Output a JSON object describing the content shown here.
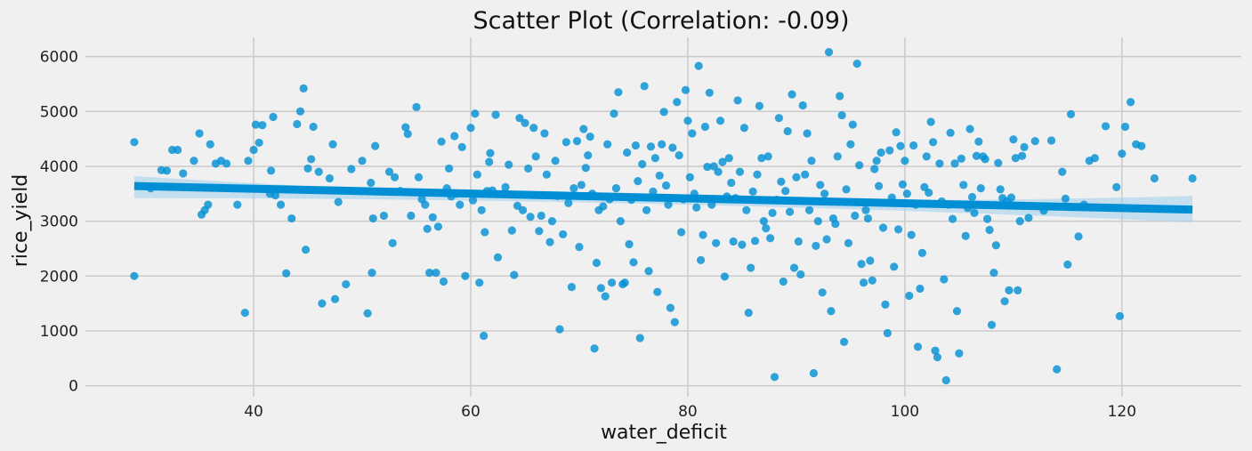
{
  "chart_data": {
    "type": "scatter",
    "title": "Scatter Plot (Correlation: -0.09)",
    "xlabel": "water_deficit",
    "ylabel": "rice_yield",
    "xlim": [
      24.5,
      131
    ],
    "ylim": [
      -200,
      6350
    ],
    "xticks": [
      40,
      60,
      80,
      100,
      120
    ],
    "yticks": [
      0,
      1000,
      2000,
      3000,
      4000,
      5000,
      6000
    ],
    "grid": true,
    "colors": {
      "points": "#008fd5",
      "line": "#008fd5",
      "band": "#9fd0ee",
      "background": "#f0f0f0",
      "grid": "#cbcbcb"
    },
    "regression": {
      "x_start": 29,
      "y_start": 3640,
      "x_end": 126.5,
      "y_end": 3210,
      "ci_start": [
        3420,
        3820
      ],
      "ci_mid": [
        3310,
        3420
      ],
      "ci_end": [
        2980,
        3460
      ]
    },
    "points": [
      [
        29,
        4440
      ],
      [
        29,
        2000
      ],
      [
        30.5,
        3600
      ],
      [
        31.5,
        3930
      ],
      [
        32,
        3920
      ],
      [
        32.5,
        4300
      ],
      [
        33,
        4300
      ],
      [
        33.5,
        3870
      ],
      [
        34.5,
        4100
      ],
      [
        35,
        4600
      ],
      [
        35.2,
        3120
      ],
      [
        35.5,
        3200
      ],
      [
        35.8,
        3300
      ],
      [
        36,
        4400
      ],
      [
        36.5,
        4050
      ],
      [
        37,
        4100
      ],
      [
        37.5,
        4050
      ],
      [
        38.5,
        3300
      ],
      [
        39.2,
        1330
      ],
      [
        39.5,
        4100
      ],
      [
        40,
        4300
      ],
      [
        40.2,
        4760
      ],
      [
        40.5,
        4430
      ],
      [
        40.8,
        4750
      ],
      [
        41.5,
        3500
      ],
      [
        41.6,
        3920
      ],
      [
        41.8,
        4900
      ],
      [
        42,
        3470
      ],
      [
        42.5,
        3300
      ],
      [
        43,
        2050
      ],
      [
        43.5,
        3050
      ],
      [
        44,
        4770
      ],
      [
        44.3,
        5000
      ],
      [
        44.6,
        5420
      ],
      [
        44.8,
        2480
      ],
      [
        45,
        3960
      ],
      [
        45.3,
        4130
      ],
      [
        45.5,
        4720
      ],
      [
        46,
        3900
      ],
      [
        46.3,
        1500
      ],
      [
        47,
        3780
      ],
      [
        47.3,
        4400
      ],
      [
        47.5,
        1580
      ],
      [
        47.8,
        3350
      ],
      [
        48.5,
        1850
      ],
      [
        49,
        3950
      ],
      [
        50,
        4100
      ],
      [
        50.5,
        1320
      ],
      [
        50.8,
        3700
      ],
      [
        50.9,
        2060
      ],
      [
        51,
        3050
      ],
      [
        51.2,
        4370
      ],
      [
        52,
        3100
      ],
      [
        52.5,
        3900
      ],
      [
        52.8,
        2600
      ],
      [
        53,
        3800
      ],
      [
        53.5,
        3550
      ],
      [
        54,
        4710
      ],
      [
        54.2,
        4590
      ],
      [
        54.5,
        3100
      ],
      [
        55,
        5080
      ],
      [
        55.2,
        3800
      ],
      [
        55.5,
        3400
      ],
      [
        55.8,
        3300
      ],
      [
        56,
        2860
      ],
      [
        56.2,
        2060
      ],
      [
        56.5,
        3070
      ],
      [
        56.8,
        2060
      ],
      [
        57,
        2900
      ],
      [
        57.3,
        4450
      ],
      [
        57.5,
        1900
      ],
      [
        57.8,
        3600
      ],
      [
        58,
        3960
      ],
      [
        58.2,
        3450
      ],
      [
        58.5,
        4550
      ],
      [
        58.7,
        3500
      ],
      [
        59,
        3300
      ],
      [
        59.2,
        4350
      ],
      [
        59.5,
        2000
      ],
      [
        60,
        4700
      ],
      [
        60.2,
        3380
      ],
      [
        60.4,
        4960
      ],
      [
        60.6,
        3850
      ],
      [
        60.8,
        1880
      ],
      [
        61,
        3200
      ],
      [
        61.2,
        910
      ],
      [
        61.3,
        2800
      ],
      [
        61.5,
        3550
      ],
      [
        61.7,
        4080
      ],
      [
        61.8,
        4240
      ],
      [
        62,
        3560
      ],
      [
        62.3,
        4940
      ],
      [
        62.5,
        2340
      ],
      [
        63,
        3500
      ],
      [
        63.2,
        3620
      ],
      [
        63.5,
        4030
      ],
      [
        63.8,
        2830
      ],
      [
        64,
        2020
      ],
      [
        64.3,
        3280
      ],
      [
        64.5,
        4880
      ],
      [
        64.8,
        3200
      ],
      [
        65,
        4790
      ],
      [
        65.3,
        3960
      ],
      [
        65.5,
        3080
      ],
      [
        65.8,
        4700
      ],
      [
        66,
        4180
      ],
      [
        66.3,
        2820
      ],
      [
        66.5,
        3100
      ],
      [
        66.8,
        4600
      ],
      [
        67,
        3850
      ],
      [
        67.3,
        2620
      ],
      [
        67.5,
        3000
      ],
      [
        67.8,
        4100
      ],
      [
        68,
        3460
      ],
      [
        68.2,
        1030
      ],
      [
        68.5,
        2760
      ],
      [
        68.8,
        4440
      ],
      [
        69,
        3330
      ],
      [
        69.3,
        1800
      ],
      [
        69.5,
        3600
      ],
      [
        69.8,
        4460
      ],
      [
        70,
        2530
      ],
      [
        70.2,
        3660
      ],
      [
        70.4,
        4680
      ],
      [
        70.6,
        3970
      ],
      [
        70.8,
        4200
      ],
      [
        71,
        4540
      ],
      [
        71.2,
        3500
      ],
      [
        71.4,
        680
      ],
      [
        71.6,
        2240
      ],
      [
        71.8,
        3200
      ],
      [
        72,
        1780
      ],
      [
        72.2,
        3270
      ],
      [
        72.4,
        1630
      ],
      [
        72.6,
        4400
      ],
      [
        72.8,
        3400
      ],
      [
        73,
        1880
      ],
      [
        73.2,
        4960
      ],
      [
        73.4,
        3600
      ],
      [
        73.6,
        5350
      ],
      [
        73.8,
        3000
      ],
      [
        74,
        1850
      ],
      [
        74.2,
        1880
      ],
      [
        74.4,
        4250
      ],
      [
        74.6,
        2580
      ],
      [
        74.8,
        3390
      ],
      [
        75,
        2250
      ],
      [
        75.2,
        4380
      ],
      [
        75.4,
        3730
      ],
      [
        75.6,
        870
      ],
      [
        75.8,
        4040
      ],
      [
        76,
        5460
      ],
      [
        76.2,
        3200
      ],
      [
        76.4,
        2090
      ],
      [
        76.6,
        4360
      ],
      [
        76.8,
        3540
      ],
      [
        77,
        4150
      ],
      [
        77.2,
        1710
      ],
      [
        77.4,
        3830
      ],
      [
        77.6,
        4400
      ],
      [
        77.8,
        4990
      ],
      [
        78,
        3650
      ],
      [
        78.2,
        3300
      ],
      [
        78.4,
        1420
      ],
      [
        78.6,
        4340
      ],
      [
        78.8,
        1160
      ],
      [
        79,
        5170
      ],
      [
        79.2,
        4200
      ],
      [
        79.4,
        2800
      ],
      [
        79.6,
        3400
      ],
      [
        79.8,
        5390
      ],
      [
        80,
        4830
      ],
      [
        80.2,
        3800
      ],
      [
        80.4,
        4600
      ],
      [
        80.6,
        3500
      ],
      [
        80.8,
        3250
      ],
      [
        81,
        5830
      ],
      [
        81.2,
        2290
      ],
      [
        81.4,
        2750
      ],
      [
        81.6,
        4720
      ],
      [
        81.8,
        3990
      ],
      [
        82,
        5340
      ],
      [
        82.2,
        3300
      ],
      [
        82.4,
        4000
      ],
      [
        82.6,
        2600
      ],
      [
        82.8,
        3900
      ],
      [
        83,
        4830
      ],
      [
        83.2,
        4080
      ],
      [
        83.4,
        1990
      ],
      [
        83.6,
        3450
      ],
      [
        83.8,
        4150
      ],
      [
        84,
        3700
      ],
      [
        84.2,
        2630
      ],
      [
        84.4,
        3420
      ],
      [
        84.6,
        5200
      ],
      [
        84.8,
        3900
      ],
      [
        85,
        2570
      ],
      [
        85.2,
        4700
      ],
      [
        85.4,
        3200
      ],
      [
        85.6,
        1330
      ],
      [
        85.8,
        2150
      ],
      [
        86,
        3540
      ],
      [
        86.2,
        2640
      ],
      [
        86.4,
        3850
      ],
      [
        86.6,
        5100
      ],
      [
        86.8,
        4150
      ],
      [
        87,
        3000
      ],
      [
        87.2,
        2870
      ],
      [
        87.4,
        4180
      ],
      [
        87.6,
        2690
      ],
      [
        87.8,
        3150
      ],
      [
        88,
        160
      ],
      [
        88.2,
        3390
      ],
      [
        88.4,
        4880
      ],
      [
        88.6,
        3720
      ],
      [
        88.8,
        1900
      ],
      [
        89,
        3550
      ],
      [
        89.2,
        4640
      ],
      [
        89.4,
        3170
      ],
      [
        89.6,
        5310
      ],
      [
        89.8,
        2150
      ],
      [
        90,
        3800
      ],
      [
        90.2,
        2630
      ],
      [
        90.4,
        2030
      ],
      [
        90.6,
        5110
      ],
      [
        90.8,
        3850
      ],
      [
        91,
        4600
      ],
      [
        91.2,
        3200
      ],
      [
        91.4,
        4100
      ],
      [
        91.6,
        230
      ],
      [
        91.8,
        2550
      ],
      [
        92,
        3000
      ],
      [
        92.2,
        3660
      ],
      [
        92.4,
        1700
      ],
      [
        92.6,
        3500
      ],
      [
        92.8,
        2670
      ],
      [
        93,
        6080
      ],
      [
        93.2,
        1360
      ],
      [
        93.4,
        3050
      ],
      [
        93.6,
        2950
      ],
      [
        93.8,
        4180
      ],
      [
        94,
        5280
      ],
      [
        94.2,
        4930
      ],
      [
        94.4,
        800
      ],
      [
        94.6,
        3580
      ],
      [
        94.8,
        2600
      ],
      [
        95,
        4400
      ],
      [
        95.2,
        4760
      ],
      [
        95.4,
        3100
      ],
      [
        95.6,
        5870
      ],
      [
        95.8,
        4020
      ],
      [
        96,
        2220
      ],
      [
        96.2,
        1880
      ],
      [
        96.4,
        3200
      ],
      [
        96.6,
        3050
      ],
      [
        96.8,
        2280
      ],
      [
        97,
        1920
      ],
      [
        97.2,
        3950
      ],
      [
        97.4,
        4100
      ],
      [
        97.6,
        3640
      ],
      [
        97.8,
        4250
      ],
      [
        98,
        2880
      ],
      [
        98.2,
        1480
      ],
      [
        98.4,
        960
      ],
      [
        98.6,
        4290
      ],
      [
        98.8,
        3430
      ],
      [
        99,
        2170
      ],
      [
        99.2,
        4620
      ],
      [
        99.4,
        2850
      ],
      [
        99.6,
        4370
      ],
      [
        99.8,
        3670
      ],
      [
        100,
        4100
      ],
      [
        100.2,
        3500
      ],
      [
        100.4,
        1640
      ],
      [
        100.6,
        2750
      ],
      [
        100.8,
        4380
      ],
      [
        101,
        3300
      ],
      [
        101.2,
        710
      ],
      [
        101.4,
        1770
      ],
      [
        101.6,
        2420
      ],
      [
        101.8,
        3620
      ],
      [
        102,
        4180
      ],
      [
        102.2,
        3520
      ],
      [
        102.4,
        4810
      ],
      [
        102.6,
        4440
      ],
      [
        102.8,
        640
      ],
      [
        103,
        520
      ],
      [
        103.2,
        4050
      ],
      [
        103.4,
        3360
      ],
      [
        103.6,
        1940
      ],
      [
        103.8,
        100
      ],
      [
        104,
        3300
      ],
      [
        104.2,
        4610
      ],
      [
        104.4,
        3040
      ],
      [
        104.6,
        4050
      ],
      [
        104.8,
        1360
      ],
      [
        105,
        590
      ],
      [
        105.2,
        4140
      ],
      [
        105.4,
        3660
      ],
      [
        105.6,
        2730
      ],
      [
        105.8,
        3240
      ],
      [
        106,
        4680
      ],
      [
        106.2,
        3440
      ],
      [
        106.4,
        3150
      ],
      [
        106.6,
        4190
      ],
      [
        106.8,
        4450
      ],
      [
        107,
        3600
      ],
      [
        107.2,
        4180
      ],
      [
        107.4,
        4130
      ],
      [
        107.6,
        3040
      ],
      [
        107.8,
        2840
      ],
      [
        108,
        1110
      ],
      [
        108.2,
        2060
      ],
      [
        108.4,
        2560
      ],
      [
        108.6,
        4060
      ],
      [
        108.8,
        3580
      ],
      [
        109,
        3420
      ],
      [
        109.2,
        1540
      ],
      [
        109.4,
        3360
      ],
      [
        109.6,
        1740
      ],
      [
        109.8,
        3430
      ],
      [
        110,
        4490
      ],
      [
        110.2,
        4150
      ],
      [
        110.4,
        1740
      ],
      [
        110.6,
        3000
      ],
      [
        110.8,
        4190
      ],
      [
        111,
        4350
      ],
      [
        111.4,
        3060
      ],
      [
        112,
        4460
      ],
      [
        112.8,
        3190
      ],
      [
        113.5,
        4470
      ],
      [
        114,
        300
      ],
      [
        114.5,
        3900
      ],
      [
        114.8,
        3410
      ],
      [
        115,
        2210
      ],
      [
        115.3,
        4950
      ],
      [
        116,
        2720
      ],
      [
        116.5,
        3300
      ],
      [
        117,
        4100
      ],
      [
        117.5,
        4150
      ],
      [
        118.5,
        4730
      ],
      [
        119.5,
        3620
      ],
      [
        119.8,
        1270
      ],
      [
        120,
        4230
      ],
      [
        120.3,
        4720
      ],
      [
        120.8,
        5170
      ],
      [
        121.3,
        4400
      ],
      [
        121.8,
        4370
      ],
      [
        123,
        3780
      ],
      [
        126.5,
        3780
      ]
    ]
  }
}
